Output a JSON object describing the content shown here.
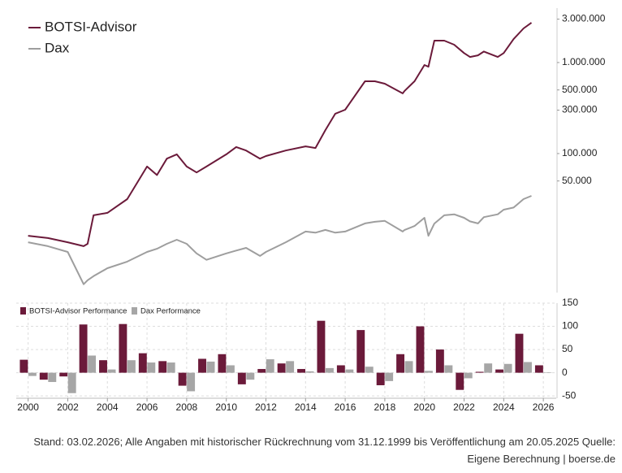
{
  "chart_data": [
    {
      "type": "line",
      "log_scale": true,
      "legend": "top-left",
      "x": [
        2000,
        2001,
        2002,
        2002.8,
        2003,
        2003.3,
        2004,
        2005,
        2006,
        2006.5,
        2007,
        2007.5,
        2008,
        2008.5,
        2009,
        2010,
        2010.5,
        2011,
        2011.7,
        2012,
        2013,
        2014,
        2014.5,
        2015,
        2015.5,
        2016,
        2017,
        2017.5,
        2018,
        2018.9,
        2019,
        2019.5,
        2020,
        2020.2,
        2020.5,
        2021,
        2021.5,
        2022,
        2022.3,
        2022.7,
        2023,
        2023.7,
        2024,
        2024.5,
        2025,
        2025.4
      ],
      "series": [
        {
          "name": "BOTSI-Advisor",
          "color": "#6b1a3a",
          "values": [
            12500,
            11800,
            10600,
            9600,
            10200,
            21000,
            22300,
            31600,
            72000,
            58000,
            88000,
            98000,
            72000,
            62000,
            72000,
            98000,
            118000,
            108000,
            88000,
            94000,
            108000,
            120000,
            115000,
            181000,
            274000,
            303000,
            623000,
            623000,
            585000,
            458000,
            488000,
            623000,
            940000,
            900000,
            1740000,
            1740000,
            1570000,
            1270000,
            1150000,
            1200000,
            1320000,
            1150000,
            1270000,
            1810000,
            2370000,
            2740000
          ]
        },
        {
          "name": "Dax",
          "color": "#9e9e9e",
          "values": [
            10600,
            9600,
            8300,
            3670,
            4060,
            4500,
            5500,
            6500,
            8300,
            9000,
            10200,
            11300,
            10200,
            8000,
            6800,
            8000,
            8600,
            9200,
            7500,
            8300,
            10600,
            13900,
            13500,
            14500,
            13500,
            13900,
            17100,
            17800,
            18200,
            13900,
            14500,
            16000,
            19700,
            12500,
            17000,
            21000,
            21500,
            19700,
            18000,
            17100,
            20000,
            21500,
            24200,
            25500,
            31600,
            34300
          ]
        }
      ],
      "xlim": [
        1999.4,
        2026.65
      ],
      "ylim": [
        2970,
        3960000
      ],
      "yticks": [
        {
          "value": 50000,
          "label": "50.000"
        },
        {
          "value": 100000,
          "label": "100.000"
        },
        {
          "value": 300000,
          "label": "300.000"
        },
        {
          "value": 500000,
          "label": "500.000"
        },
        {
          "value": 1000000,
          "label": "1.000.000"
        },
        {
          "value": 3000000,
          "label": "3.000.000"
        }
      ]
    },
    {
      "type": "bar",
      "legend": "top-left",
      "grid": true,
      "x": [
        2000,
        2001,
        2002,
        2003,
        2004,
        2005,
        2006,
        2007,
        2008,
        2009,
        2010,
        2011,
        2012,
        2013,
        2014,
        2015,
        2016,
        2017,
        2018,
        2019,
        2020,
        2021,
        2022,
        2023,
        2024,
        2025,
        2026
      ],
      "series": [
        {
          "name": "BOTSI-Advisor Performance",
          "color": "#6b1a3a",
          "values": [
            28,
            -15,
            -8,
            104,
            27,
            105,
            42,
            25,
            -28,
            30,
            40,
            -25,
            8,
            20,
            8,
            112,
            16,
            92,
            -27,
            40,
            100,
            50,
            -37,
            2,
            7,
            84,
            16
          ]
        },
        {
          "name": "Dax Performance",
          "color": "#a6a6a6",
          "values": [
            -7,
            -20,
            -44,
            37,
            7,
            27,
            22,
            22,
            -40,
            24,
            16,
            -15,
            29,
            25,
            3,
            10,
            7,
            13,
            -18,
            25,
            4,
            16,
            -12,
            20,
            19,
            23,
            1
          ]
        }
      ],
      "xlim": [
        1999.4,
        2026.65
      ],
      "ylim": [
        -55,
        150
      ],
      "xticks": [
        2000,
        2002,
        2004,
        2006,
        2008,
        2010,
        2012,
        2014,
        2016,
        2018,
        2020,
        2022,
        2024,
        2026
      ],
      "yticks": [
        -50,
        0,
        50,
        100,
        150
      ]
    }
  ],
  "footer": [
    "Stand: 03.02.2026; Alle Angaben mit historischer Rückrechnung vom 31.12.1999 bis Veröffentlichung am 20.05.2025 Quelle:",
    "Eigene Berechnung | boerse.de"
  ]
}
